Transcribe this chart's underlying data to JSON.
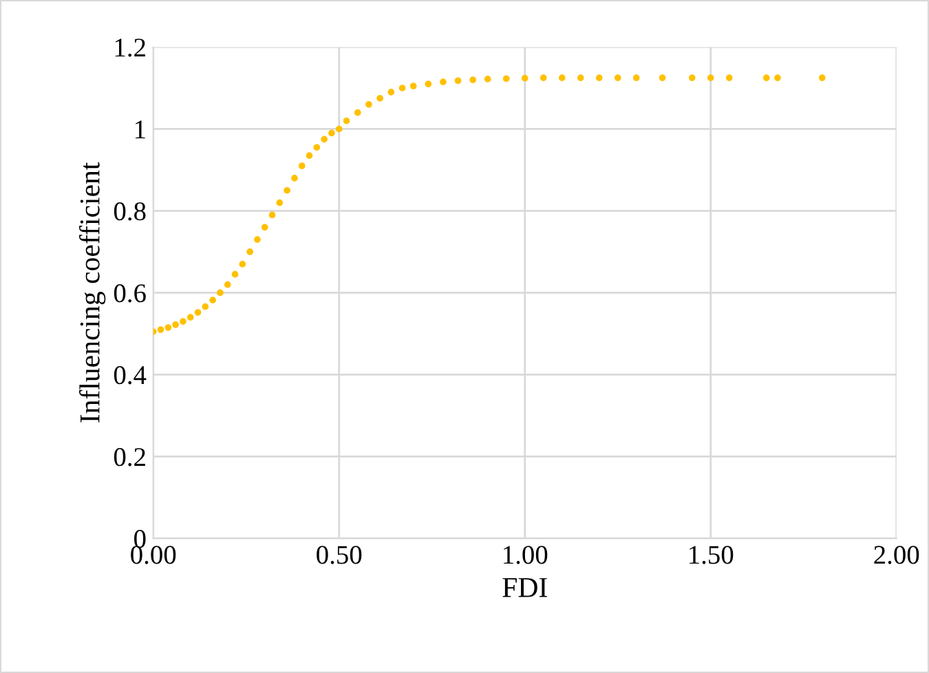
{
  "chart_data": {
    "type": "scatter",
    "xlabel": "FDI",
    "ylabel": "Influencing coefficient",
    "x": [
      0.0,
      0.02,
      0.04,
      0.06,
      0.08,
      0.1,
      0.12,
      0.14,
      0.16,
      0.18,
      0.2,
      0.22,
      0.24,
      0.26,
      0.28,
      0.3,
      0.32,
      0.34,
      0.36,
      0.38,
      0.4,
      0.42,
      0.44,
      0.46,
      0.48,
      0.5,
      0.52,
      0.55,
      0.58,
      0.61,
      0.64,
      0.67,
      0.7,
      0.74,
      0.78,
      0.82,
      0.86,
      0.9,
      0.95,
      1.0,
      1.05,
      1.1,
      1.15,
      1.2,
      1.25,
      1.3,
      1.37,
      1.45,
      1.5,
      1.55,
      1.65,
      1.68,
      1.8
    ],
    "series": [
      {
        "color": "#ffc000",
        "values": [
          0.505,
          0.51,
          0.515,
          0.522,
          0.53,
          0.54,
          0.552,
          0.566,
          0.582,
          0.6,
          0.62,
          0.645,
          0.67,
          0.7,
          0.73,
          0.76,
          0.79,
          0.82,
          0.85,
          0.88,
          0.91,
          0.935,
          0.955,
          0.975,
          0.99,
          1.0,
          1.02,
          1.04,
          1.06,
          1.075,
          1.09,
          1.1,
          1.105,
          1.11,
          1.115,
          1.118,
          1.12,
          1.122,
          1.123,
          1.124,
          1.125,
          1.125,
          1.125,
          1.125,
          1.125,
          1.125,
          1.125,
          1.125,
          1.125,
          1.125,
          1.125,
          1.125,
          1.125
        ]
      }
    ],
    "xlim": [
      0,
      2
    ],
    "xticks": [
      {
        "value": 0,
        "label": "0.00"
      },
      {
        "value": 0.5,
        "label": "0.50"
      },
      {
        "value": 1,
        "label": "1.00"
      },
      {
        "value": 1.5,
        "label": "1.50"
      },
      {
        "value": 2,
        "label": "2.00"
      }
    ],
    "ylim": [
      0,
      1.2
    ],
    "yticks": [
      0,
      0.2,
      0.4,
      0.6,
      0.8,
      1,
      1.2
    ],
    "grid": true,
    "marker": "circle"
  }
}
